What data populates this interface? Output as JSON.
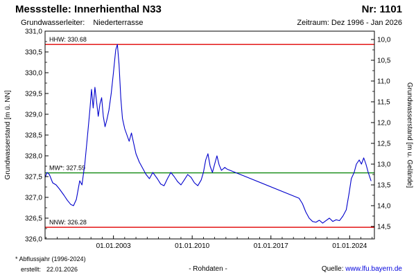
{
  "header": {
    "station_label": "Messstelle: Innerhienthal N33",
    "number_label": "Nr: 1101",
    "aquifer_label": "Grundwasserleiter:",
    "aquifer_value": "Niederterrasse",
    "period_label": "Zeitraum: Dez 1996 - Jan 2026"
  },
  "footer": {
    "footnote": "* Abflussjahr (1996-2024)",
    "created_label": "erstellt:",
    "created_date": "22.01.2026",
    "center_label": "- Rohdaten -",
    "source_label": "Quelle:",
    "source_link": "www.lfu.bayern.de"
  },
  "chart_data": {
    "type": "line",
    "title": "",
    "ylabel_left": "Grundwasserstand [m ü. NN]",
    "ylabel_right": "Grundwasserstand [m u. Gelände]",
    "x_range": [
      1996.92,
      2026.2
    ],
    "x_ticks": [
      "01.01.2003",
      "01.01.2010",
      "01.01.2017",
      "01.01.2024"
    ],
    "x_tick_years": [
      2003,
      2010,
      2017,
      2024
    ],
    "y_left_range": [
      326.0,
      331.0
    ],
    "y_left_ticks": [
      326.0,
      326.5,
      327.0,
      327.5,
      328.0,
      328.5,
      329.0,
      329.5,
      330.0,
      330.5,
      331.0
    ],
    "y_right_range": [
      9.8,
      14.8
    ],
    "y_right_ticks": [
      10.0,
      10.5,
      11.0,
      11.5,
      12.0,
      12.5,
      13.0,
      13.5,
      14.0,
      14.5
    ],
    "grid": false,
    "reference_lines": [
      {
        "name": "HHW",
        "label": "HHW: 330.68",
        "value": 330.68,
        "color": "#e00000"
      },
      {
        "name": "MW",
        "label": "MW*: 327.59",
        "value": 327.59,
        "color": "#008000"
      },
      {
        "name": "NNW",
        "label": "NNW: 326.28",
        "value": 326.28,
        "color": "#e00000"
      }
    ],
    "series": [
      {
        "name": "Rohdaten",
        "color": "#0000cc",
        "points": [
          [
            1996.92,
            327.48
          ],
          [
            1997.1,
            327.6
          ],
          [
            1997.3,
            327.55
          ],
          [
            1997.6,
            327.35
          ],
          [
            1997.9,
            327.3
          ],
          [
            1998.2,
            327.2
          ],
          [
            1998.6,
            327.05
          ],
          [
            1998.9,
            326.93
          ],
          [
            1999.2,
            326.83
          ],
          [
            1999.45,
            326.8
          ],
          [
            1999.7,
            326.95
          ],
          [
            2000.0,
            327.4
          ],
          [
            2000.2,
            327.3
          ],
          [
            2000.45,
            327.8
          ],
          [
            2000.7,
            328.5
          ],
          [
            2000.9,
            329.1
          ],
          [
            2001.05,
            329.6
          ],
          [
            2001.2,
            329.15
          ],
          [
            2001.35,
            329.65
          ],
          [
            2001.5,
            329.3
          ],
          [
            2001.65,
            328.95
          ],
          [
            2001.8,
            329.25
          ],
          [
            2001.95,
            329.4
          ],
          [
            2002.1,
            328.95
          ],
          [
            2002.25,
            328.7
          ],
          [
            2002.4,
            328.85
          ],
          [
            2002.6,
            329.1
          ],
          [
            2002.8,
            329.5
          ],
          [
            2003.0,
            330.0
          ],
          [
            2003.2,
            330.55
          ],
          [
            2003.35,
            330.68
          ],
          [
            2003.5,
            330.2
          ],
          [
            2003.65,
            329.4
          ],
          [
            2003.8,
            328.9
          ],
          [
            2004.0,
            328.65
          ],
          [
            2004.2,
            328.5
          ],
          [
            2004.4,
            328.35
          ],
          [
            2004.6,
            328.55
          ],
          [
            2004.8,
            328.3
          ],
          [
            2005.0,
            328.05
          ],
          [
            2005.3,
            327.85
          ],
          [
            2005.6,
            327.7
          ],
          [
            2005.9,
            327.55
          ],
          [
            2006.2,
            327.45
          ],
          [
            2006.5,
            327.6
          ],
          [
            2006.9,
            327.45
          ],
          [
            2007.2,
            327.32
          ],
          [
            2007.5,
            327.28
          ],
          [
            2007.8,
            327.45
          ],
          [
            2008.1,
            327.6
          ],
          [
            2008.4,
            327.5
          ],
          [
            2008.7,
            327.38
          ],
          [
            2009.0,
            327.3
          ],
          [
            2009.3,
            327.42
          ],
          [
            2009.6,
            327.55
          ],
          [
            2009.9,
            327.48
          ],
          [
            2010.2,
            327.35
          ],
          [
            2010.5,
            327.28
          ],
          [
            2010.8,
            327.42
          ],
          [
            2011.0,
            327.6
          ],
          [
            2011.2,
            327.9
          ],
          [
            2011.4,
            328.05
          ],
          [
            2011.6,
            327.75
          ],
          [
            2011.8,
            327.6
          ],
          [
            2012.0,
            327.8
          ],
          [
            2012.2,
            328.0
          ],
          [
            2012.4,
            327.78
          ],
          [
            2012.6,
            327.65
          ],
          [
            2012.9,
            327.72
          ],
          [
            2013.1,
            327.68
          ],
          [
            2019.5,
            326.98
          ],
          [
            2019.8,
            326.85
          ],
          [
            2020.1,
            326.65
          ],
          [
            2020.4,
            326.5
          ],
          [
            2020.7,
            326.42
          ],
          [
            2021.0,
            326.4
          ],
          [
            2021.3,
            326.45
          ],
          [
            2021.6,
            326.38
          ],
          [
            2021.9,
            326.44
          ],
          [
            2022.2,
            326.5
          ],
          [
            2022.5,
            326.42
          ],
          [
            2022.8,
            326.46
          ],
          [
            2023.1,
            326.44
          ],
          [
            2023.4,
            326.55
          ],
          [
            2023.7,
            326.7
          ],
          [
            2023.95,
            327.1
          ],
          [
            2024.15,
            327.45
          ],
          [
            2024.4,
            327.6
          ],
          [
            2024.6,
            327.8
          ],
          [
            2024.85,
            327.9
          ],
          [
            2025.05,
            327.8
          ],
          [
            2025.25,
            327.95
          ],
          [
            2025.45,
            327.8
          ],
          [
            2025.65,
            327.6
          ],
          [
            2025.9,
            327.4
          ]
        ]
      }
    ]
  }
}
